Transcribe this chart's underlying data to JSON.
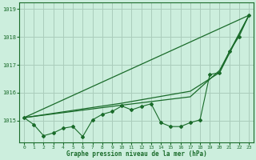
{
  "title": "Graphe pression niveau de la mer (hPa)",
  "background_color": "#cceedd",
  "grid_color": "#aaccbb",
  "line_color": "#1a6b2a",
  "xlim": [
    -0.5,
    23.5
  ],
  "ylim": [
    1014.2,
    1019.25
  ],
  "yticks": [
    1015,
    1016,
    1017,
    1018,
    1019
  ],
  "xticks": [
    0,
    1,
    2,
    3,
    4,
    5,
    6,
    7,
    8,
    9,
    10,
    11,
    12,
    13,
    14,
    15,
    16,
    17,
    18,
    19,
    20,
    21,
    22,
    23
  ],
  "series_main_x": [
    0,
    1,
    2,
    3,
    4,
    5,
    6,
    7,
    8,
    9,
    10,
    11,
    12,
    13,
    14,
    15,
    16,
    17,
    18,
    19,
    20,
    21,
    22,
    23
  ],
  "series_main_y": [
    1015.1,
    1014.85,
    1014.45,
    1014.55,
    1014.72,
    1014.78,
    1014.42,
    1015.02,
    1015.22,
    1015.32,
    1015.52,
    1015.38,
    1015.5,
    1015.6,
    1014.92,
    1014.78,
    1014.78,
    1014.92,
    1015.02,
    1016.65,
    1016.72,
    1017.48,
    1018.02,
    1018.78
  ],
  "trend1_x": [
    0,
    23
  ],
  "trend1_y": [
    1015.1,
    1018.78
  ],
  "trend2_x": [
    0,
    10,
    17,
    20,
    23
  ],
  "trend2_y": [
    1015.1,
    1015.55,
    1015.85,
    1016.8,
    1018.78
  ],
  "trend3_x": [
    0,
    10,
    17,
    20,
    23
  ],
  "trend3_y": [
    1015.1,
    1015.62,
    1016.05,
    1016.72,
    1018.78
  ]
}
